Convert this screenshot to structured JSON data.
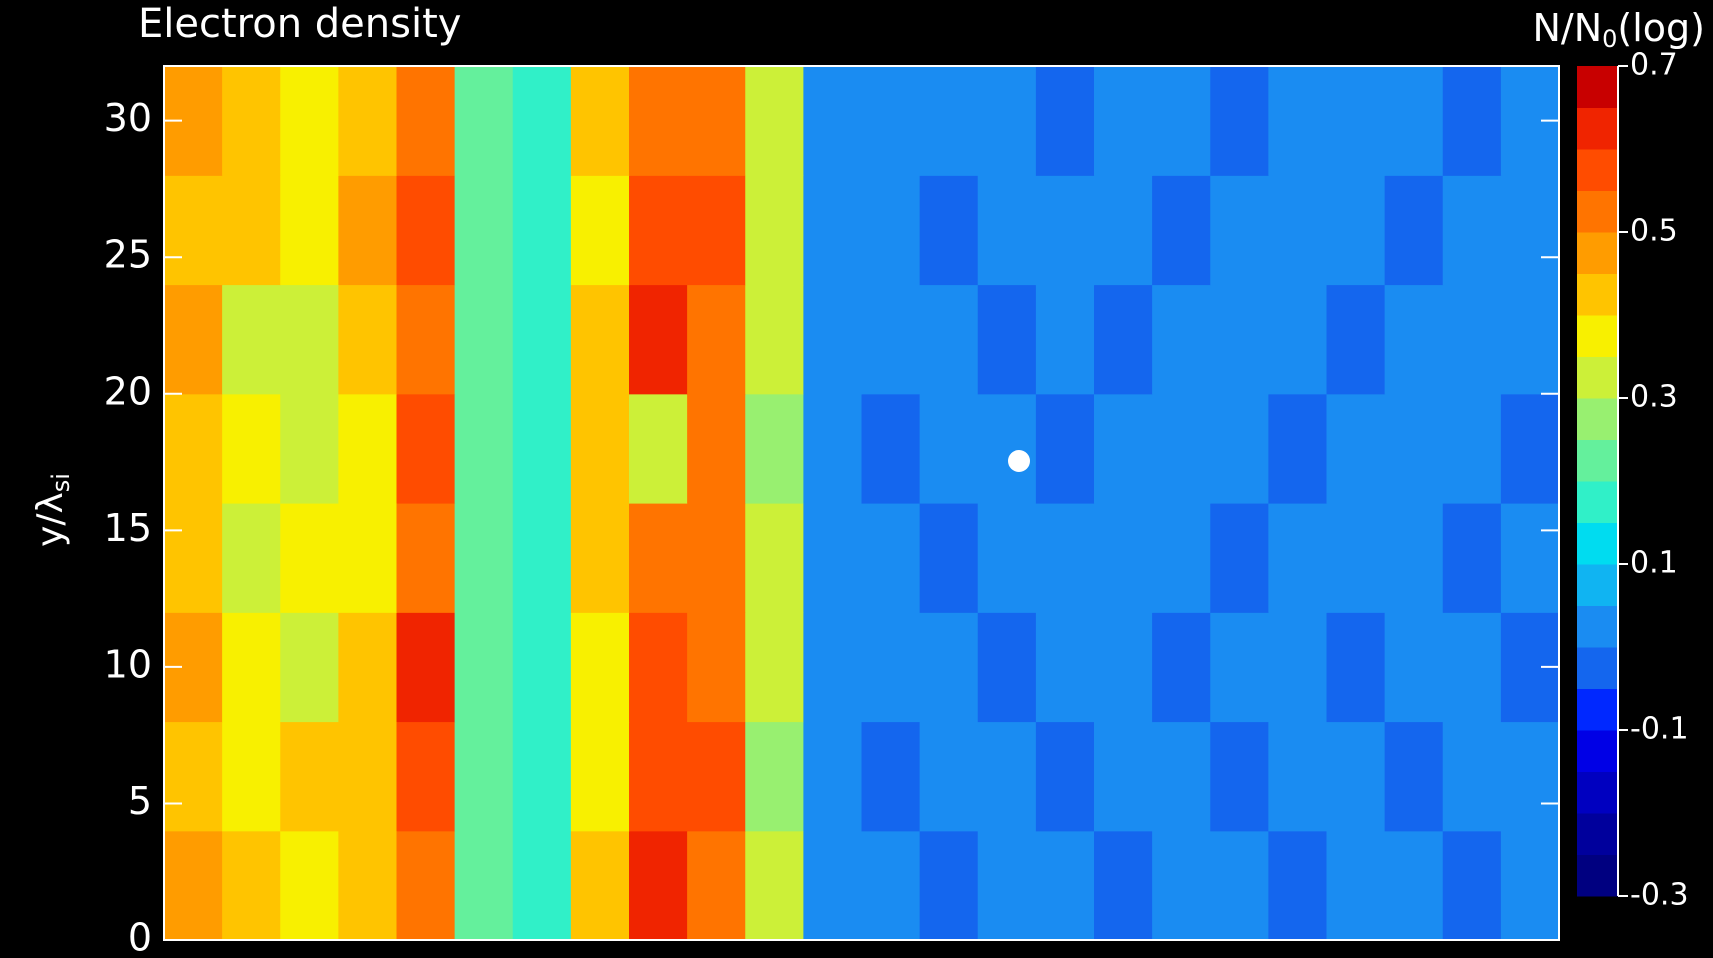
{
  "chart_data": {
    "type": "heatmap",
    "title": "Electron density",
    "y_label": [
      "y/λ",
      "si"
    ],
    "colorbar_label": [
      "N/N",
      "0",
      "(log)"
    ],
    "ylim": [
      0,
      32
    ],
    "yticks": [
      0,
      5,
      10,
      15,
      20,
      25,
      30
    ],
    "clim": [
      -0.3,
      0.7
    ],
    "cticks": [
      -0.3,
      -0.1,
      0.1,
      0.3,
      0.5,
      0.7
    ],
    "colorscale": [
      "#000080",
      "#00009c",
      "#0000c0",
      "#0000e6",
      "#0028ff",
      "#1466ee",
      "#1a8cf2",
      "#10b4f2",
      "#00dcf0",
      "#30f0c8",
      "#64f09c",
      "#98f070",
      "#ccf038",
      "#f8f000",
      "#ffc400",
      "#ff9c00",
      "#ff7400",
      "#ff4c00",
      "#f02400",
      "#c80000"
    ],
    "z": [
      [
        0.45,
        0.4,
        0.38,
        0.42,
        0.52,
        0.22,
        0.18,
        0.4,
        0.6,
        0.52,
        0.3,
        0.03,
        0.02,
        -0.02,
        0.02,
        0.01,
        -0.02,
        0.02,
        0.02,
        -0.01,
        0.02,
        0.02,
        -0.02,
        0.02
      ],
      [
        0.42,
        0.36,
        0.4,
        0.44,
        0.58,
        0.2,
        0.16,
        0.36,
        0.55,
        0.56,
        0.28,
        0.03,
        -0.02,
        0.02,
        0.02,
        -0.02,
        0.02,
        0.01,
        -0.02,
        0.02,
        0.02,
        -0.02,
        0.02,
        0.01
      ],
      [
        0.46,
        0.38,
        0.34,
        0.4,
        0.6,
        0.23,
        0.17,
        0.38,
        0.58,
        0.54,
        0.3,
        0.02,
        0.02,
        0.01,
        -0.02,
        0.02,
        0.02,
        -0.02,
        0.02,
        0.02,
        -0.02,
        0.02,
        0.01,
        -0.02
      ],
      [
        0.4,
        0.35,
        0.38,
        0.36,
        0.5,
        0.21,
        0.15,
        0.42,
        0.52,
        0.5,
        0.32,
        0.03,
        0.02,
        -0.02,
        0.02,
        0.02,
        0.01,
        0.02,
        -0.02,
        0.02,
        0.01,
        0.02,
        -0.02,
        0.02
      ],
      [
        0.44,
        0.38,
        0.34,
        0.38,
        0.56,
        0.24,
        0.18,
        0.4,
        0.34,
        0.52,
        0.28,
        0.02,
        -0.02,
        0.02,
        0.01,
        -0.02,
        0.02,
        0.02,
        0.02,
        -0.02,
        0.02,
        0.01,
        0.02,
        -0.02
      ],
      [
        0.46,
        0.34,
        0.32,
        0.4,
        0.52,
        0.2,
        0.16,
        0.44,
        0.6,
        0.5,
        0.3,
        0.03,
        0.02,
        0.02,
        -0.02,
        0.02,
        -0.02,
        0.02,
        0.01,
        0.02,
        -0.02,
        0.02,
        0.02,
        0.01
      ],
      [
        0.42,
        0.4,
        0.36,
        0.46,
        0.58,
        0.22,
        0.17,
        0.38,
        0.56,
        0.58,
        0.3,
        0.03,
        0.01,
        -0.02,
        0.02,
        0.02,
        0.02,
        -0.02,
        0.02,
        0.01,
        0.02,
        -0.02,
        0.02,
        0.02
      ],
      [
        0.48,
        0.44,
        0.38,
        0.44,
        0.5,
        0.24,
        0.19,
        0.4,
        0.5,
        0.52,
        0.32,
        0.02,
        0.02,
        0.02,
        0.01,
        -0.02,
        0.02,
        0.02,
        -0.02,
        0.02,
        0.02,
        0.01,
        -0.02,
        0.02
      ]
    ]
  }
}
